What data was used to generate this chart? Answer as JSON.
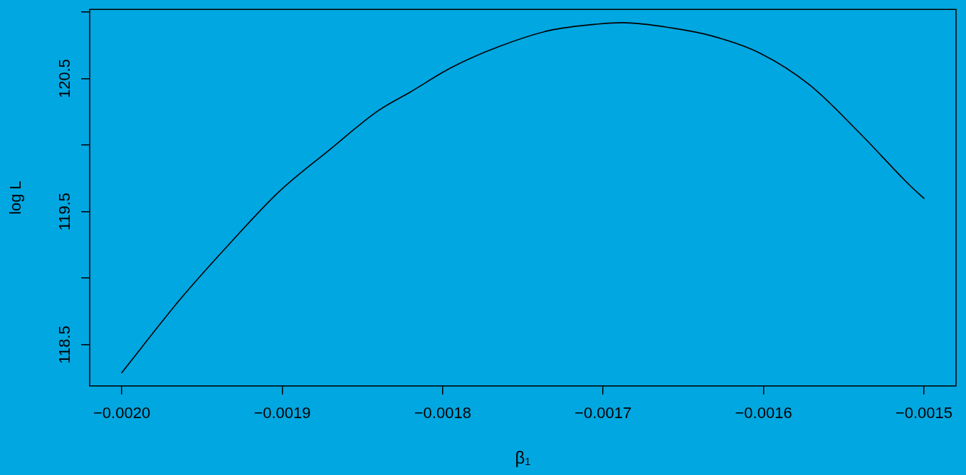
{
  "chart_data": {
    "type": "line",
    "xlabel": "β₁",
    "ylabel": "log L",
    "x": [
      -0.002,
      -0.001963,
      -0.001932,
      -0.001902,
      -0.001871,
      -0.00184,
      -0.00182,
      -0.001795,
      -0.001765,
      -0.001734,
      -0.001703,
      -0.001688,
      -0.001657,
      -0.001632,
      -0.001602,
      -0.001571,
      -0.00154,
      -0.001509,
      -0.0015
    ],
    "series": [
      {
        "color": "#000000",
        "values": [
          118.29,
          118.85,
          119.27,
          119.65,
          119.96,
          120.26,
          120.4,
          120.58,
          120.74,
          120.86,
          120.91,
          120.92,
          120.88,
          120.82,
          120.69,
          120.45,
          120.09,
          119.7,
          119.6
        ]
      }
    ],
    "xlim": [
      -0.00202,
      -0.00148
    ],
    "xticks": [
      {
        "value": -0.002,
        "label": "−0.0020"
      },
      {
        "value": -0.0019,
        "label": "−0.0019"
      },
      {
        "value": -0.0018,
        "label": "−0.0018"
      },
      {
        "value": -0.0017,
        "label": "−0.0017"
      },
      {
        "value": -0.0016,
        "label": "−0.0016"
      },
      {
        "value": -0.0015,
        "label": "−0.0015"
      }
    ],
    "ylim": [
      118.19,
      121.02
    ],
    "yticks": [
      118.5,
      {
        "value": 119,
        "label": null
      },
      119.5,
      {
        "value": 120,
        "label": null
      },
      120.5,
      {
        "value": 121,
        "label": null
      }
    ],
    "marker": "none",
    "line_style": "solid"
  }
}
